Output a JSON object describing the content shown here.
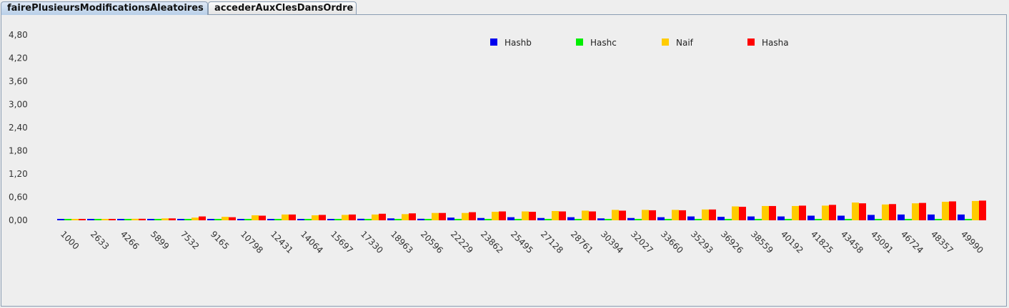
{
  "tabs": [
    {
      "label": "fairePlusieursModificationsAleatoires",
      "active": true
    },
    {
      "label": "accederAuxClesDansOrdre",
      "active": false
    }
  ],
  "chart_data": {
    "type": "bar",
    "title": "",
    "xlabel": "",
    "ylabel": "",
    "ylim": [
      0,
      4.8
    ],
    "y_ticks": [
      "0,00",
      "0,60",
      "1,20",
      "1,80",
      "2,40",
      "3,00",
      "3,60",
      "4,20",
      "4,80"
    ],
    "grid": false,
    "legend_position": "top-center",
    "categories": [
      "1000",
      "2633",
      "4266",
      "5899",
      "7532",
      "9165",
      "10798",
      "12431",
      "14064",
      "15697",
      "17330",
      "18963",
      "20596",
      "22229",
      "23862",
      "25495",
      "27128",
      "28761",
      "30394",
      "32027",
      "33660",
      "35293",
      "36926",
      "38559",
      "40192",
      "41825",
      "43458",
      "45091",
      "46724",
      "48357",
      "49990"
    ],
    "series": [
      {
        "name": "Hashb",
        "color": "#0000ee",
        "values": [
          0.0,
          0.0,
          0.0,
          0.01,
          0.01,
          0.02,
          0.02,
          0.02,
          0.02,
          0.03,
          0.04,
          0.05,
          0.04,
          0.07,
          0.06,
          0.08,
          0.06,
          0.08,
          0.05,
          0.06,
          0.08,
          0.1,
          0.09,
          0.1,
          0.1,
          0.12,
          0.12,
          0.14,
          0.15,
          0.15,
          0.15
        ]
      },
      {
        "name": "Hashc",
        "color": "#00ee00",
        "values": [
          0.0,
          0.0,
          0.0,
          0.0,
          0.0,
          0.0,
          0.0,
          0.0,
          0.0,
          0.0,
          0.0,
          0.0,
          0.0,
          0.0,
          0.0,
          0.0,
          0.0,
          0.0,
          0.0,
          0.0,
          0.0,
          0.0,
          0.0,
          0.0,
          0.0,
          0.0,
          0.0,
          0.0,
          0.0,
          0.0,
          0.0
        ]
      },
      {
        "name": "Naif",
        "color": "#ffcc00",
        "values": [
          0.02,
          0.02,
          0.04,
          0.05,
          0.07,
          0.09,
          0.13,
          0.15,
          0.13,
          0.14,
          0.15,
          0.16,
          0.19,
          0.19,
          0.22,
          0.23,
          0.24,
          0.25,
          0.27,
          0.27,
          0.27,
          0.28,
          0.36,
          0.37,
          0.37,
          0.38,
          0.46,
          0.41,
          0.44,
          0.48,
          0.5
        ]
      },
      {
        "name": "Hasha",
        "color": "#ff0000",
        "values": [
          0.01,
          0.02,
          0.04,
          0.05,
          0.1,
          0.08,
          0.12,
          0.15,
          0.14,
          0.15,
          0.17,
          0.18,
          0.19,
          0.21,
          0.23,
          0.22,
          0.23,
          0.23,
          0.25,
          0.26,
          0.26,
          0.28,
          0.35,
          0.37,
          0.38,
          0.4,
          0.44,
          0.42,
          0.45,
          0.49,
          0.51
        ]
      }
    ]
  }
}
